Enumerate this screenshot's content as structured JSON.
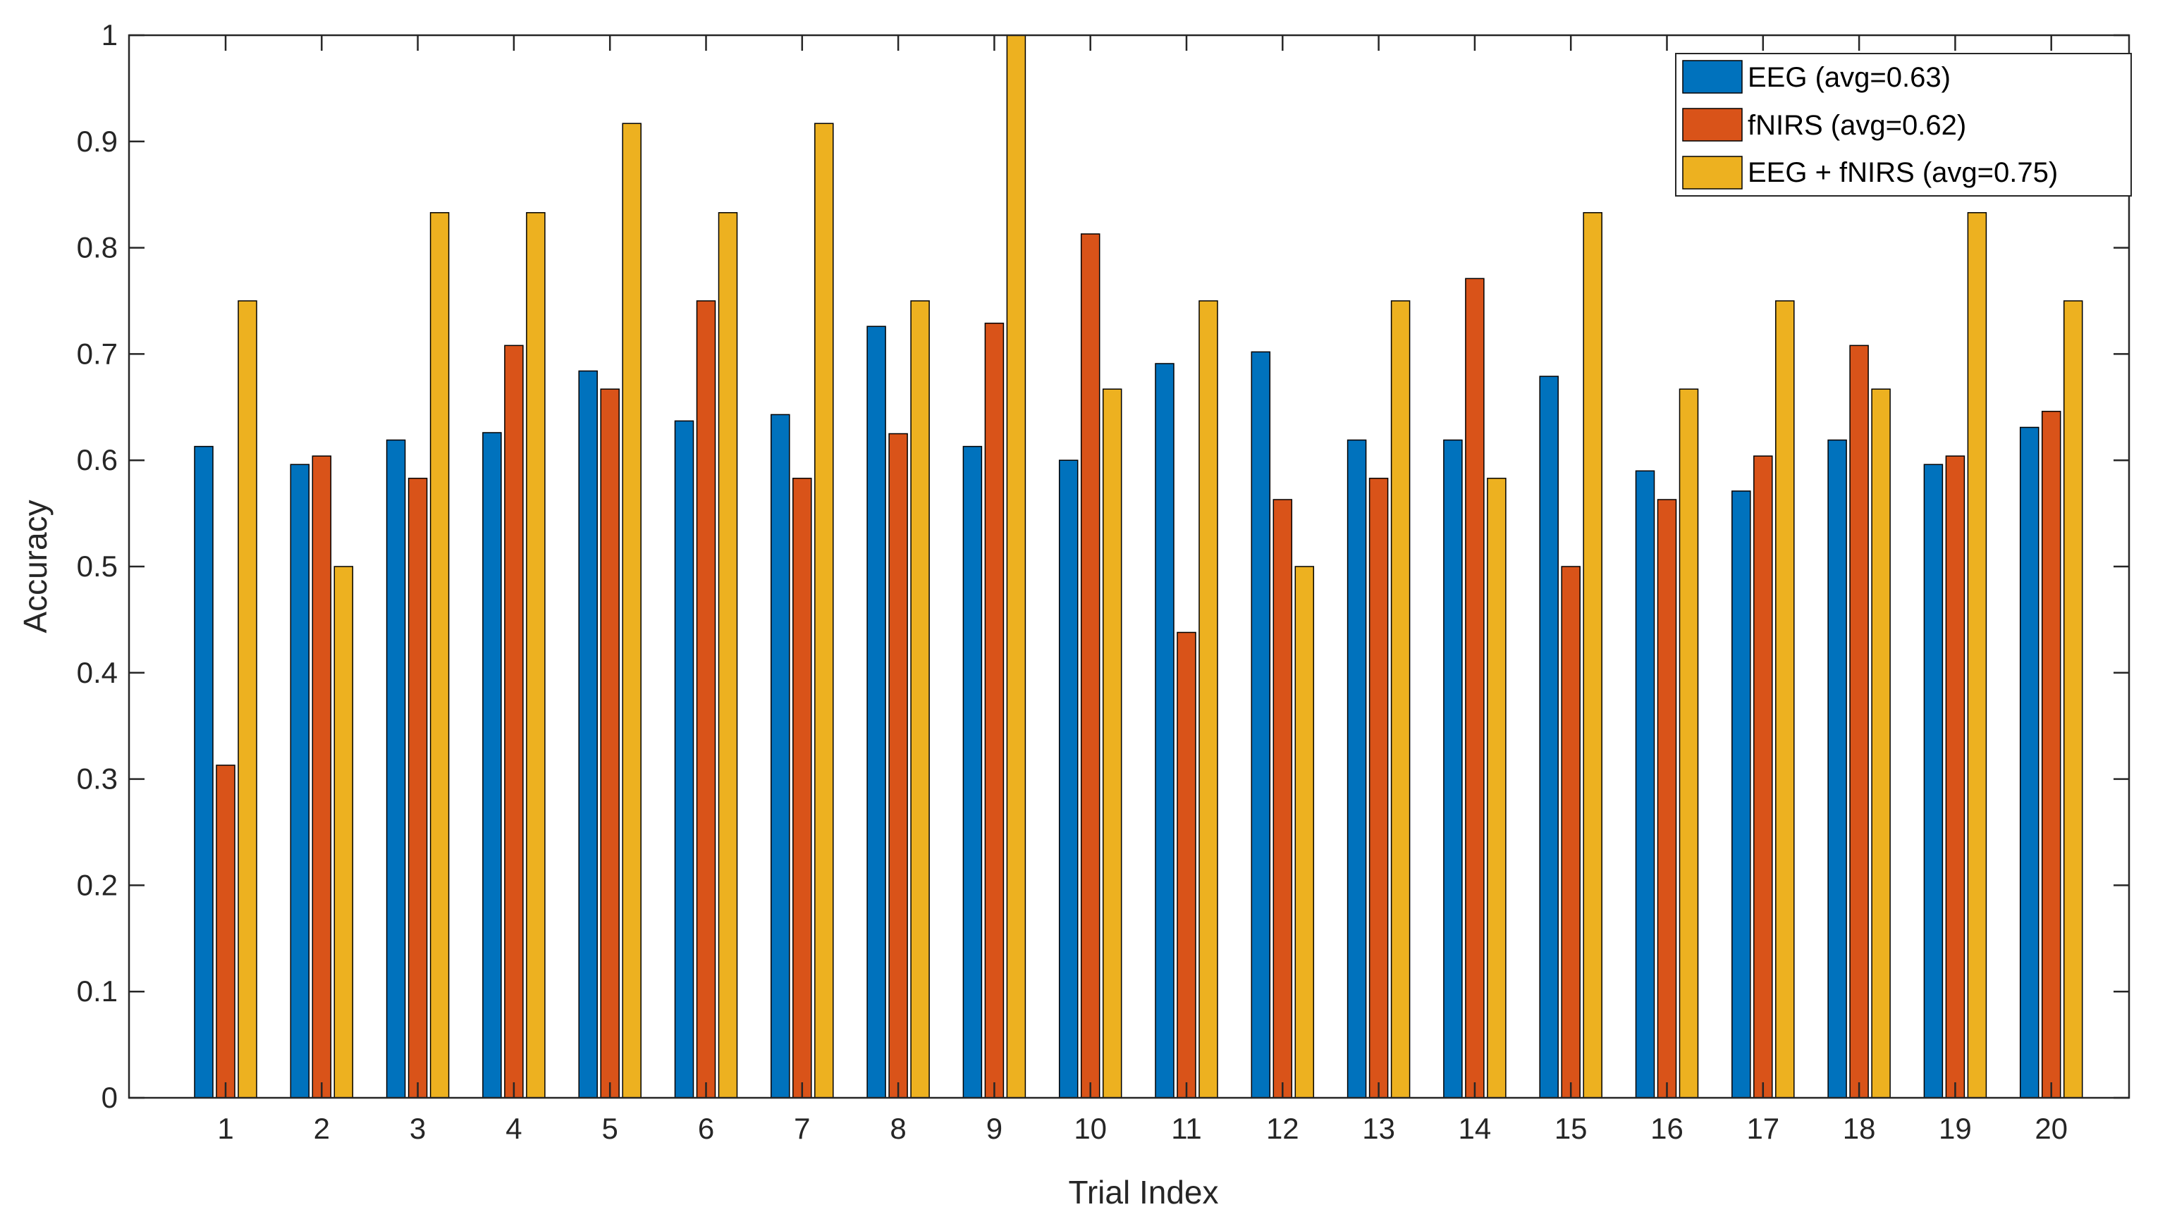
{
  "chart_data": {
    "type": "bar",
    "title": "",
    "xlabel": "Trial Index",
    "ylabel": "Accuracy",
    "ylim": [
      0,
      1
    ],
    "yticks": [
      "0",
      "0.1",
      "0.2",
      "0.3",
      "0.4",
      "0.5",
      "0.6",
      "0.7",
      "0.8",
      "0.9",
      "1"
    ],
    "categories": [
      "1",
      "2",
      "3",
      "4",
      "5",
      "6",
      "7",
      "8",
      "9",
      "10",
      "11",
      "12",
      "13",
      "14",
      "15",
      "16",
      "17",
      "18",
      "19",
      "20"
    ],
    "legend_position": "top-right",
    "series": [
      {
        "name": "EEG (avg=0.63)",
        "color": "#0072BD",
        "values": [
          0.613,
          0.596,
          0.619,
          0.626,
          0.684,
          0.637,
          0.643,
          0.726,
          0.613,
          0.6,
          0.691,
          0.702,
          0.619,
          0.619,
          0.679,
          0.59,
          0.571,
          0.619,
          0.596,
          0.631
        ]
      },
      {
        "name": "fNIRS (avg=0.62)",
        "color": "#D95319",
        "values": [
          0.313,
          0.604,
          0.583,
          0.708,
          0.667,
          0.75,
          0.583,
          0.625,
          0.729,
          0.813,
          0.438,
          0.563,
          0.583,
          0.771,
          0.5,
          0.563,
          0.604,
          0.708,
          0.604,
          0.646
        ]
      },
      {
        "name": "EEG + fNIRS (avg=0.75)",
        "color": "#EDB120",
        "values": [
          0.75,
          0.5,
          0.833,
          0.833,
          0.917,
          0.833,
          0.917,
          0.75,
          1.0,
          0.667,
          0.75,
          0.5,
          0.75,
          0.583,
          0.833,
          0.667,
          0.75,
          0.667,
          0.833,
          0.75
        ]
      }
    ]
  }
}
